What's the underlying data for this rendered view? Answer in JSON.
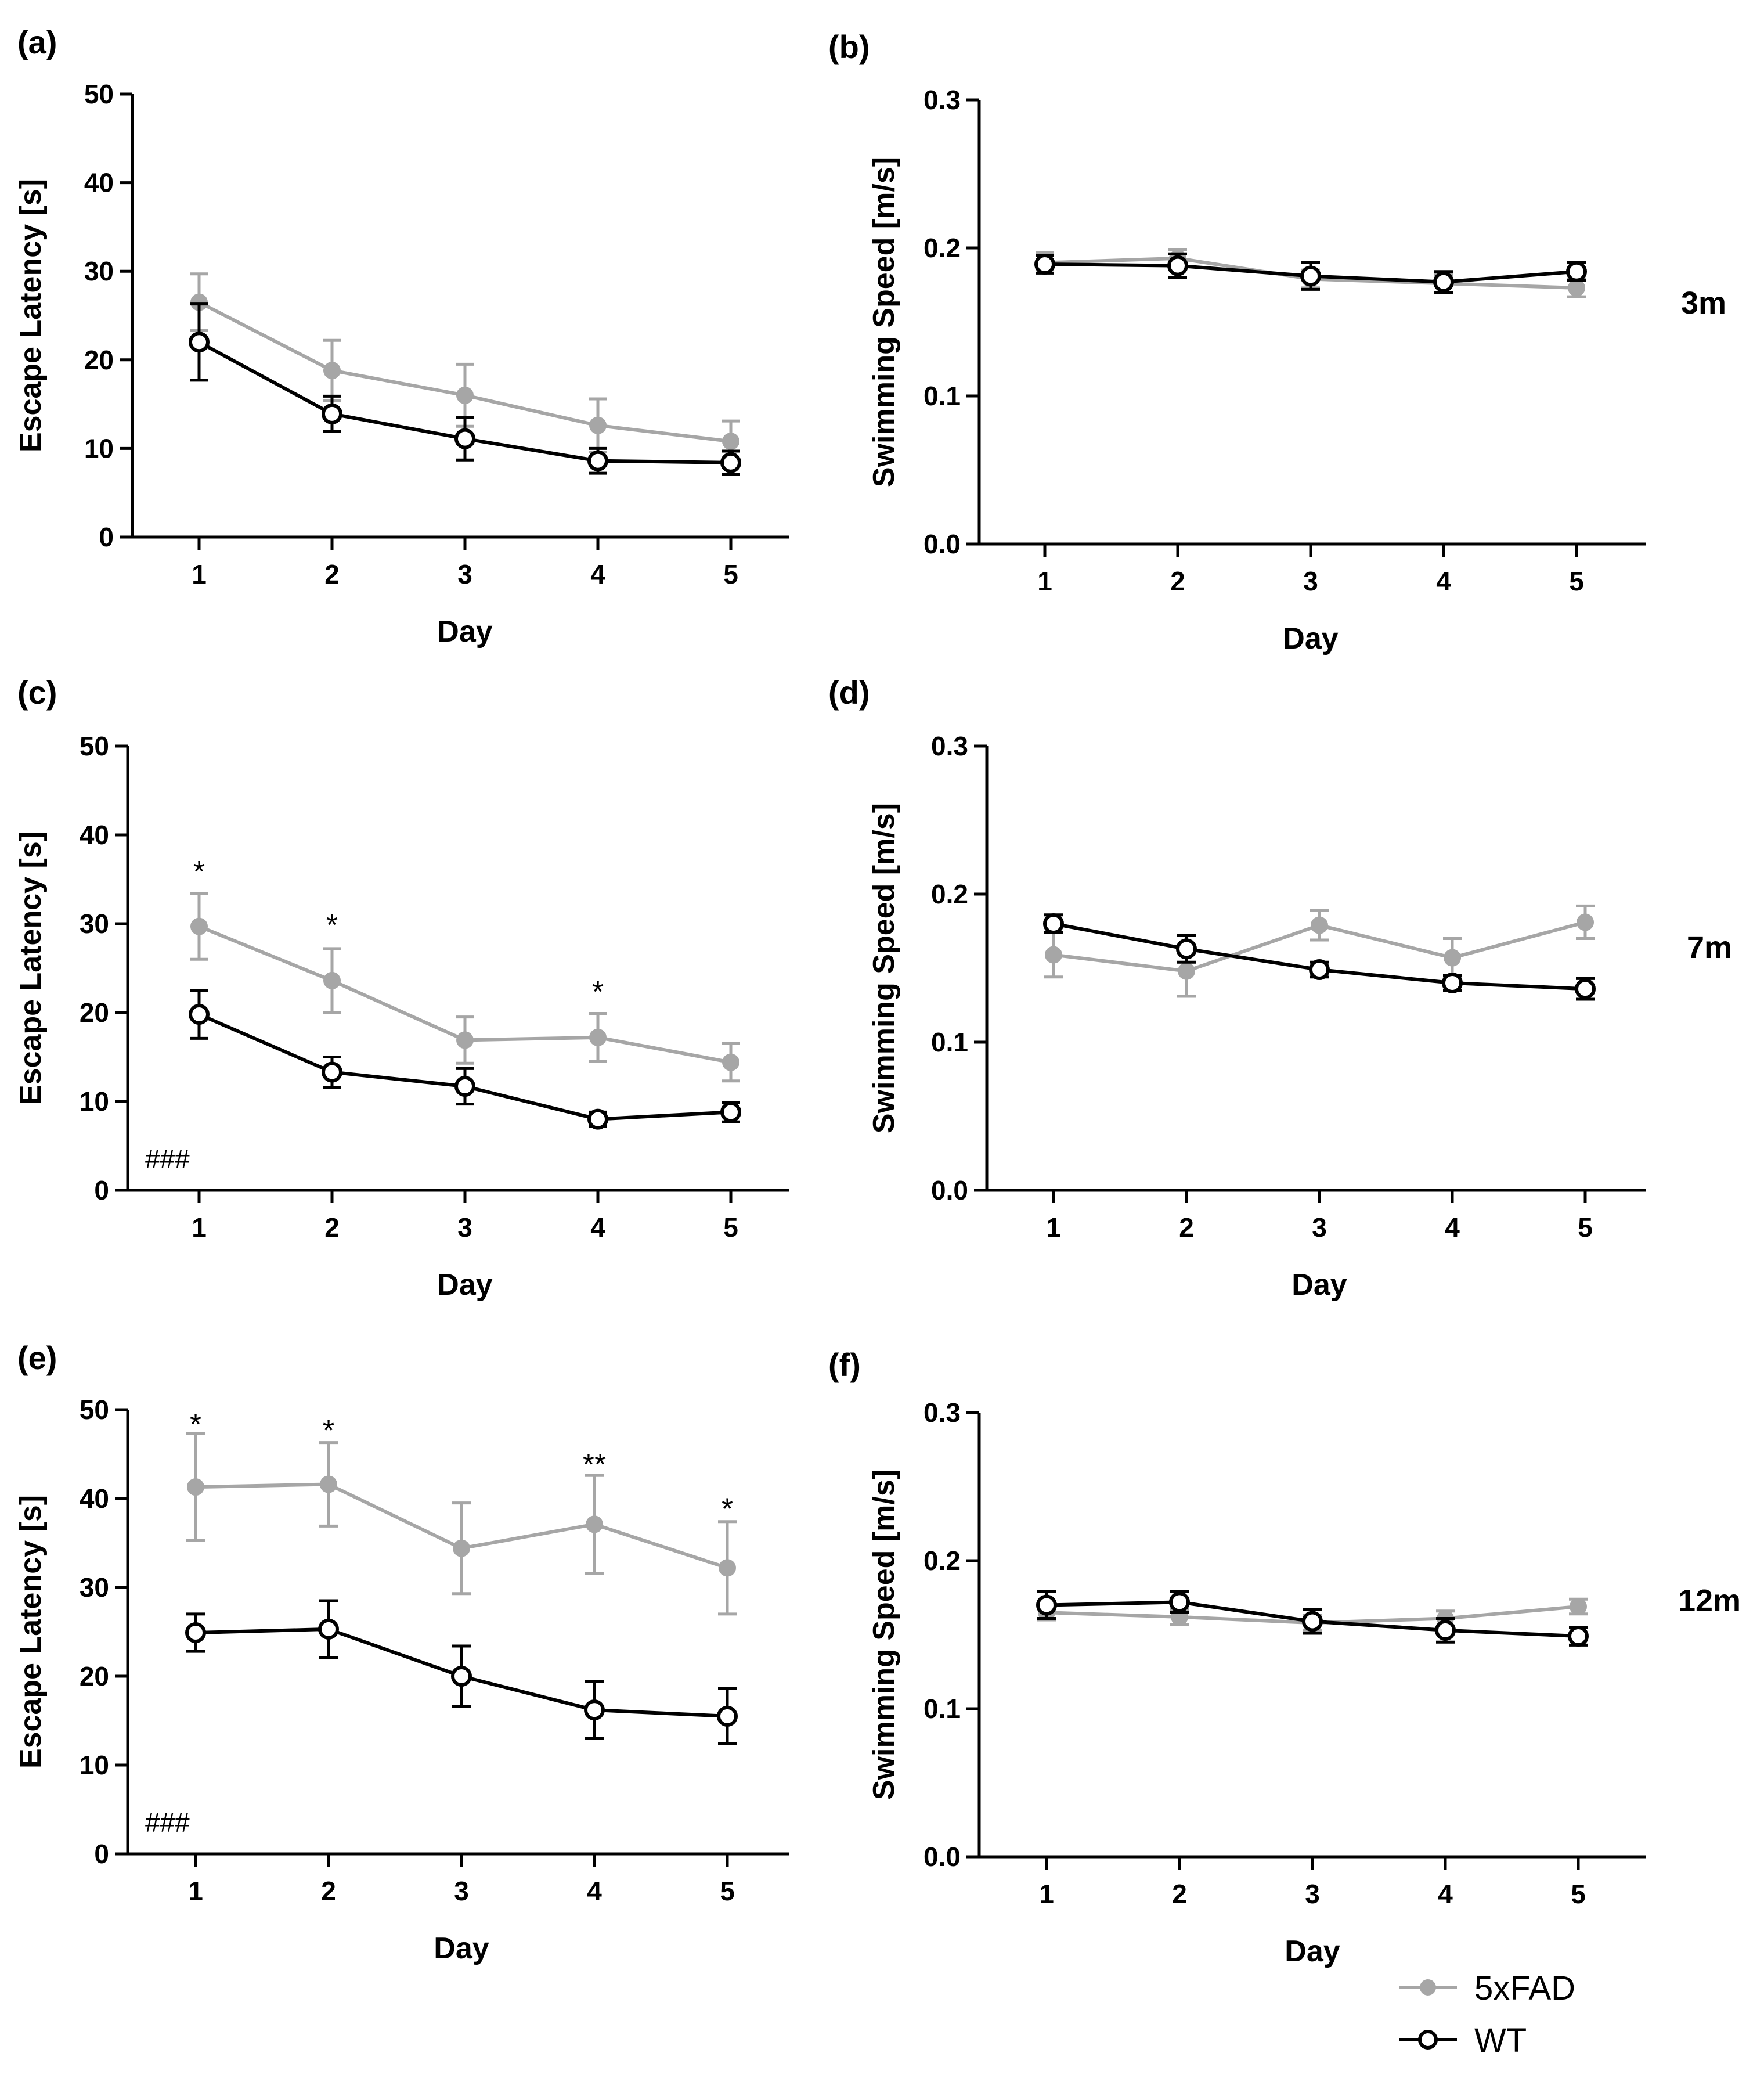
{
  "chart_data": [
    {
      "type": "line",
      "panel_label": "(a)",
      "xlabel": "Day",
      "ylabel": "Escape Latency [s]",
      "categories": [
        "1",
        "2",
        "3",
        "4",
        "5"
      ],
      "ylim": [
        0,
        50
      ],
      "yticks": [
        "0",
        "10",
        "20",
        "30",
        "40",
        "50"
      ],
      "series": [
        {
          "name": "5xFAD",
          "values": [
            26.5,
            18.8,
            16.0,
            12.6,
            10.8
          ],
          "err": [
            3.2,
            3.4,
            3.5,
            3.0,
            2.3
          ]
        },
        {
          "name": "WT",
          "values": [
            22.0,
            13.9,
            11.1,
            8.6,
            8.4
          ],
          "err": [
            4.3,
            2.0,
            2.4,
            1.4,
            1.3
          ]
        }
      ],
      "annotations": [],
      "hash_note": "",
      "side_label": ""
    },
    {
      "type": "line",
      "panel_label": "(b)",
      "xlabel": "Day",
      "ylabel": "Swimming Speed [m/s]",
      "categories": [
        "1",
        "2",
        "3",
        "4",
        "5"
      ],
      "ylim": [
        0,
        0.3
      ],
      "yticks": [
        "0.0",
        "0.1",
        "0.2",
        "0.3"
      ],
      "series": [
        {
          "name": "5xFAD",
          "values": [
            0.19,
            0.193,
            0.179,
            0.176,
            0.173
          ],
          "err": [
            0.007,
            0.006,
            0.006,
            0.006,
            0.006
          ]
        },
        {
          "name": "WT",
          "values": [
            0.189,
            0.188,
            0.181,
            0.177,
            0.184
          ],
          "err": [
            0.006,
            0.008,
            0.009,
            0.007,
            0.006
          ]
        }
      ],
      "annotations": [],
      "hash_note": "",
      "side_label": "3m"
    },
    {
      "type": "line",
      "panel_label": "(c)",
      "xlabel": "Day",
      "ylabel": "Escape Latency [s]",
      "categories": [
        "1",
        "2",
        "3",
        "4",
        "5"
      ],
      "ylim": [
        0,
        50
      ],
      "yticks": [
        "0",
        "10",
        "20",
        "30",
        "40",
        "50"
      ],
      "series": [
        {
          "name": "5xFAD",
          "values": [
            29.7,
            23.6,
            16.9,
            17.2,
            14.4
          ],
          "err": [
            3.7,
            3.6,
            2.6,
            2.7,
            2.1
          ]
        },
        {
          "name": "WT",
          "values": [
            19.8,
            13.3,
            11.7,
            8.0,
            8.8
          ],
          "err": [
            2.7,
            1.7,
            2.0,
            0.8,
            1.1
          ]
        }
      ],
      "annotations": [
        {
          "x": "1",
          "y": 36.0,
          "text": "*"
        },
        {
          "x": "2",
          "y": 30.0,
          "text": "*"
        },
        {
          "x": "4",
          "y": 22.5,
          "text": "*"
        }
      ],
      "hash_note": "###",
      "side_label": ""
    },
    {
      "type": "line",
      "panel_label": "(d)",
      "xlabel": "Day",
      "ylabel": "Swimming Speed [m/s]",
      "categories": [
        "1",
        "2",
        "3",
        "4",
        "5"
      ],
      "ylim": [
        0,
        0.3
      ],
      "yticks": [
        "0.0",
        "0.1",
        "0.2",
        "0.3"
      ],
      "series": [
        {
          "name": "5xFAD",
          "values": [
            0.159,
            0.148,
            0.179,
            0.157,
            0.181
          ],
          "err": [
            0.015,
            0.017,
            0.01,
            0.013,
            0.011
          ]
        },
        {
          "name": "WT",
          "values": [
            0.18,
            0.163,
            0.149,
            0.14,
            0.136
          ],
          "err": [
            0.006,
            0.009,
            0.005,
            0.005,
            0.007
          ]
        }
      ],
      "annotations": [],
      "hash_note": "",
      "side_label": "7m"
    },
    {
      "type": "line",
      "panel_label": "(e)",
      "xlabel": "Day",
      "ylabel": "Escape Latency [s]",
      "categories": [
        "1",
        "2",
        "3",
        "4",
        "5"
      ],
      "ylim": [
        0,
        50
      ],
      "yticks": [
        "0",
        "10",
        "20",
        "30",
        "40",
        "50"
      ],
      "series": [
        {
          "name": "5xFAD",
          "values": [
            41.3,
            41.6,
            34.4,
            37.1,
            32.2
          ],
          "err": [
            6.0,
            4.7,
            5.1,
            5.5,
            5.2
          ]
        },
        {
          "name": "WT",
          "values": [
            24.9,
            25.3,
            20.0,
            16.2,
            15.5
          ],
          "err": [
            2.1,
            3.2,
            3.4,
            3.2,
            3.1
          ]
        }
      ],
      "annotations": [
        {
          "x": "1",
          "y": 48.5,
          "text": "*"
        },
        {
          "x": "2",
          "y": 47.8,
          "text": "*"
        },
        {
          "x": "4",
          "y": 44.0,
          "text": "**"
        },
        {
          "x": "5",
          "y": 39.0,
          "text": "*"
        }
      ],
      "hash_note": "###",
      "side_label": ""
    },
    {
      "type": "line",
      "panel_label": "(f)",
      "xlabel": "Day",
      "ylabel": "Swimming Speed [m/s]",
      "categories": [
        "1",
        "2",
        "3",
        "4",
        "5"
      ],
      "ylim": [
        0,
        0.3
      ],
      "yticks": [
        "0.0",
        "0.1",
        "0.2",
        "0.3"
      ],
      "series": [
        {
          "name": "5xFAD",
          "values": [
            0.165,
            0.162,
            0.158,
            0.161,
            0.169
          ],
          "err": [
            0.005,
            0.005,
            0.005,
            0.005,
            0.005
          ]
        },
        {
          "name": "WT",
          "values": [
            0.17,
            0.172,
            0.159,
            0.153,
            0.149
          ],
          "err": [
            0.009,
            0.007,
            0.008,
            0.008,
            0.006
          ]
        }
      ],
      "annotations": [],
      "hash_note": "",
      "side_label": "12m"
    }
  ],
  "legend": {
    "position": "bottom-right",
    "items": [
      {
        "label": "5xFAD",
        "marker": "filled-circle",
        "color": "#a6a6a6"
      },
      {
        "label": "WT",
        "marker": "open-circle",
        "color": "#000000"
      }
    ]
  },
  "colors": {
    "fad": "#a6a6a6",
    "wt": "#000000"
  }
}
